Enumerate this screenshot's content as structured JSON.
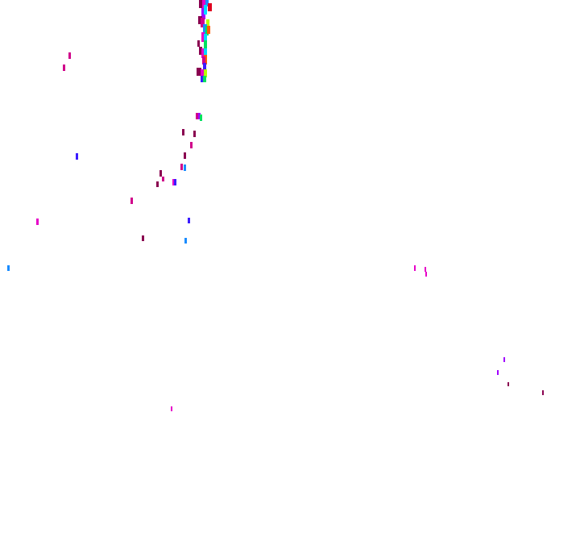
{
  "palette": {
    "maroon": "#8a0050",
    "magenta": "#e600c8",
    "pink": "#d0008a",
    "violet": "#a000ff",
    "blue": "#3b1cff",
    "sky": "#1a8cff",
    "cyan": "#00d8ff",
    "green": "#00e060",
    "lime": "#b8ff00",
    "orange": "#ff5a00",
    "red": "#e00020"
  }
}
